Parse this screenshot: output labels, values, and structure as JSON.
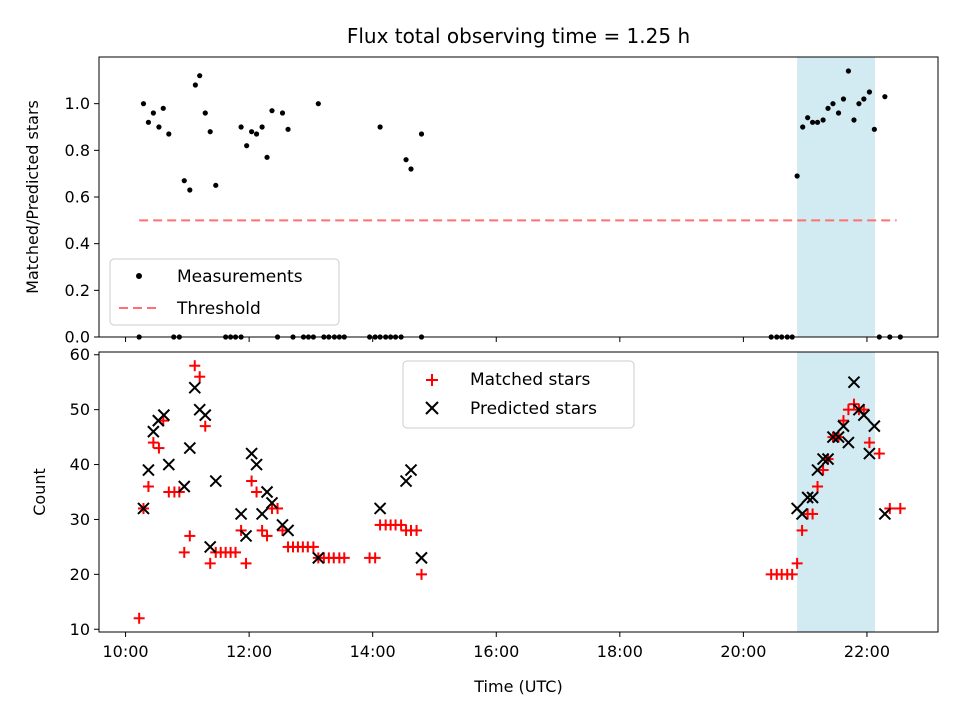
{
  "chart_data": {
    "title": "Flux total observing time = 1.25 h",
    "highlight": {
      "x_start_h": 20.87,
      "x_end_h": 22.13,
      "color": "#add8e6"
    },
    "x_axis": {
      "label": "Time (UTC)",
      "lim_h": [
        9.57,
        23.15
      ],
      "ticks": [
        {
          "h": 10,
          "label": "10:00"
        },
        {
          "h": 12,
          "label": "12:00"
        },
        {
          "h": 14,
          "label": "14:00"
        },
        {
          "h": 16,
          "label": "16:00"
        },
        {
          "h": 18,
          "label": "18:00"
        },
        {
          "h": 20,
          "label": "20:00"
        },
        {
          "h": 22,
          "label": "22:00"
        }
      ]
    },
    "panels": [
      {
        "type": "scatter",
        "ylabel": "Matched/Predicted stars",
        "ylim": [
          0,
          1.2
        ],
        "yticks": [
          {
            "v": 0.0,
            "label": "0.0"
          },
          {
            "v": 0.2,
            "label": "0.2"
          },
          {
            "v": 0.4,
            "label": "0.4"
          },
          {
            "v": 0.6,
            "label": "0.6"
          },
          {
            "v": 0.8,
            "label": "0.8"
          },
          {
            "v": 1.0,
            "label": "1.0"
          }
        ],
        "legend": {
          "placement": "lower left",
          "entries": [
            {
              "label": "Measurements",
              "marker": "dot",
              "color": "#000000"
            },
            {
              "label": "Threshold",
              "marker": "dashed-line",
              "color": "#ff7070"
            }
          ]
        },
        "threshold": {
          "value": 0.5,
          "x_from_h": 10.22,
          "x_to_h": 22.48,
          "color": "#ff7070"
        },
        "points": [
          [
            10.22,
            0.0
          ],
          [
            10.29,
            1.0
          ],
          [
            10.37,
            0.92
          ],
          [
            10.45,
            0.96
          ],
          [
            10.54,
            0.9
          ],
          [
            10.61,
            0.98
          ],
          [
            10.7,
            0.87
          ],
          [
            10.95,
            0.67
          ],
          [
            11.04,
            0.63
          ],
          [
            11.13,
            1.08
          ],
          [
            11.2,
            1.12
          ],
          [
            11.29,
            0.96
          ],
          [
            11.37,
            0.88
          ],
          [
            11.46,
            0.65
          ],
          [
            10.78,
            0.0
          ],
          [
            10.87,
            0.0
          ],
          [
            11.62,
            0.0
          ],
          [
            11.7,
            0.0
          ],
          [
            11.78,
            0.0
          ],
          [
            11.87,
            0.0
          ],
          [
            11.87,
            0.9
          ],
          [
            11.96,
            0.82
          ],
          [
            12.04,
            0.88
          ],
          [
            12.12,
            0.87
          ],
          [
            12.21,
            0.9
          ],
          [
            12.29,
            0.77
          ],
          [
            12.37,
            0.97
          ],
          [
            12.54,
            0.96
          ],
          [
            12.63,
            0.89
          ],
          [
            13.12,
            1.0
          ],
          [
            12.46,
            0.0
          ],
          [
            12.71,
            0.0
          ],
          [
            12.88,
            0.0
          ],
          [
            12.96,
            0.0
          ],
          [
            13.04,
            0.0
          ],
          [
            13.21,
            0.0
          ],
          [
            13.29,
            0.0
          ],
          [
            13.38,
            0.0
          ],
          [
            13.46,
            0.0
          ],
          [
            13.54,
            0.0
          ],
          [
            13.95,
            0.0
          ],
          [
            14.04,
            0.0
          ],
          [
            14.12,
            0.0
          ],
          [
            14.21,
            0.0
          ],
          [
            14.29,
            0.0
          ],
          [
            14.37,
            0.0
          ],
          [
            14.46,
            0.0
          ],
          [
            14.79,
            0.0
          ],
          [
            14.12,
            0.9
          ],
          [
            14.54,
            0.76
          ],
          [
            14.62,
            0.72
          ],
          [
            14.79,
            0.87
          ],
          [
            20.45,
            0.0
          ],
          [
            20.54,
            0.0
          ],
          [
            20.62,
            0.0
          ],
          [
            20.71,
            0.0
          ],
          [
            20.79,
            0.0
          ],
          [
            20.87,
            0.69
          ],
          [
            20.96,
            0.9
          ],
          [
            21.04,
            0.94
          ],
          [
            21.12,
            0.92
          ],
          [
            21.2,
            0.92
          ],
          [
            21.29,
            0.93
          ],
          [
            21.37,
            0.98
          ],
          [
            21.45,
            1.0
          ],
          [
            21.54,
            0.96
          ],
          [
            21.62,
            1.02
          ],
          [
            21.7,
            1.14
          ],
          [
            21.79,
            0.93
          ],
          [
            21.87,
            1.0
          ],
          [
            21.95,
            1.02
          ],
          [
            22.04,
            1.05
          ],
          [
            22.12,
            0.89
          ],
          [
            22.29,
            1.03
          ],
          [
            22.2,
            0.0
          ],
          [
            22.37,
            0.0
          ],
          [
            22.54,
            0.0
          ]
        ]
      },
      {
        "type": "scatter",
        "ylabel": "Count",
        "ylim": [
          9.5,
          60.5
        ],
        "yticks": [
          {
            "v": 10,
            "label": "10"
          },
          {
            "v": 20,
            "label": "20"
          },
          {
            "v": 30,
            "label": "30"
          },
          {
            "v": 40,
            "label": "40"
          },
          {
            "v": 50,
            "label": "50"
          },
          {
            "v": 60,
            "label": "60"
          }
        ],
        "legend": {
          "placement": "upper center",
          "entries": [
            {
              "label": "Matched stars",
              "marker": "plus",
              "color": "#ff0000"
            },
            {
              "label": "Predicted stars",
              "marker": "x",
              "color": "#000000"
            }
          ]
        },
        "series": [
          {
            "name": "Matched stars",
            "marker": "plus",
            "color": "#ff0000",
            "points": [
              [
                10.22,
                12
              ],
              [
                10.29,
                32
              ],
              [
                10.37,
                36
              ],
              [
                10.45,
                44
              ],
              [
                10.54,
                43
              ],
              [
                10.61,
                48
              ],
              [
                10.7,
                35
              ],
              [
                10.79,
                35
              ],
              [
                10.87,
                35
              ],
              [
                10.95,
                24
              ],
              [
                11.04,
                27
              ],
              [
                11.12,
                58
              ],
              [
                11.2,
                56
              ],
              [
                11.29,
                47
              ],
              [
                11.37,
                22
              ],
              [
                11.46,
                24
              ],
              [
                11.54,
                24
              ],
              [
                11.62,
                24
              ],
              [
                11.7,
                24
              ],
              [
                11.78,
                24
              ],
              [
                11.87,
                28
              ],
              [
                11.95,
                22
              ],
              [
                12.04,
                37
              ],
              [
                12.12,
                35
              ],
              [
                12.21,
                28
              ],
              [
                12.29,
                27
              ],
              [
                12.37,
                32
              ],
              [
                12.46,
                32
              ],
              [
                12.54,
                28
              ],
              [
                12.63,
                25
              ],
              [
                12.71,
                25
              ],
              [
                12.79,
                25
              ],
              [
                12.87,
                25
              ],
              [
                12.95,
                25
              ],
              [
                13.04,
                25
              ],
              [
                13.12,
                23
              ],
              [
                13.21,
                23
              ],
              [
                13.29,
                23
              ],
              [
                13.37,
                23
              ],
              [
                13.46,
                23
              ],
              [
                13.54,
                23
              ],
              [
                13.95,
                23
              ],
              [
                14.04,
                23
              ],
              [
                14.12,
                29
              ],
              [
                14.21,
                29
              ],
              [
                14.29,
                29
              ],
              [
                14.37,
                29
              ],
              [
                14.46,
                29
              ],
              [
                14.54,
                28
              ],
              [
                14.62,
                28
              ],
              [
                14.71,
                28
              ],
              [
                14.79,
                20
              ],
              [
                20.45,
                20
              ],
              [
                20.54,
                20
              ],
              [
                20.62,
                20
              ],
              [
                20.71,
                20
              ],
              [
                20.79,
                20
              ],
              [
                20.87,
                22
              ],
              [
                20.95,
                28
              ],
              [
                21.04,
                31
              ],
              [
                21.12,
                31
              ],
              [
                21.2,
                36
              ],
              [
                21.29,
                39
              ],
              [
                21.37,
                41
              ],
              [
                21.45,
                45
              ],
              [
                21.54,
                45
              ],
              [
                21.62,
                48
              ],
              [
                21.7,
                50
              ],
              [
                21.79,
                51
              ],
              [
                21.87,
                50
              ],
              [
                21.95,
                50
              ],
              [
                22.04,
                44
              ],
              [
                22.2,
                42
              ],
              [
                22.37,
                32
              ],
              [
                22.54,
                32
              ]
            ]
          },
          {
            "name": "Predicted stars",
            "marker": "x",
            "color": "#000000",
            "points": [
              [
                10.29,
                32
              ],
              [
                10.37,
                39
              ],
              [
                10.45,
                46
              ],
              [
                10.53,
                48
              ],
              [
                10.62,
                49
              ],
              [
                10.7,
                40
              ],
              [
                10.95,
                36
              ],
              [
                11.04,
                43
              ],
              [
                11.12,
                54
              ],
              [
                11.2,
                50
              ],
              [
                11.29,
                49
              ],
              [
                11.37,
                25
              ],
              [
                11.46,
                37
              ],
              [
                11.87,
                31
              ],
              [
                11.95,
                27
              ],
              [
                12.04,
                42
              ],
              [
                12.12,
                40
              ],
              [
                12.21,
                31
              ],
              [
                12.29,
                35
              ],
              [
                12.37,
                33
              ],
              [
                12.54,
                29
              ],
              [
                12.63,
                28
              ],
              [
                13.12,
                23
              ],
              [
                14.12,
                32
              ],
              [
                14.54,
                37
              ],
              [
                14.62,
                39
              ],
              [
                14.79,
                23
              ],
              [
                20.87,
                32
              ],
              [
                20.95,
                31
              ],
              [
                21.04,
                34
              ],
              [
                21.12,
                34
              ],
              [
                21.2,
                39
              ],
              [
                21.29,
                41
              ],
              [
                21.37,
                41
              ],
              [
                21.45,
                45
              ],
              [
                21.54,
                45
              ],
              [
                21.62,
                47
              ],
              [
                21.7,
                44
              ],
              [
                21.79,
                55
              ],
              [
                21.87,
                50
              ],
              [
                21.95,
                49
              ],
              [
                22.04,
                42
              ],
              [
                22.12,
                47
              ],
              [
                22.29,
                31
              ]
            ]
          }
        ]
      }
    ]
  }
}
